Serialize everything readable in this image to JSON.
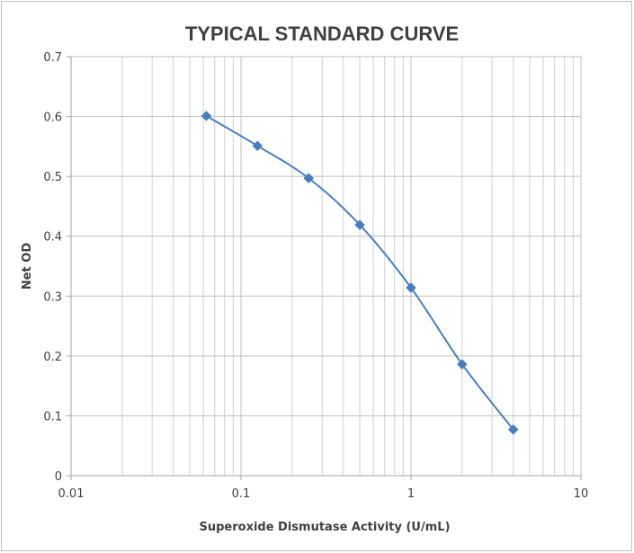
{
  "chart_data": {
    "type": "scatter",
    "title": "TYPICAL STANDARD CURVE",
    "xlabel": "Superoxide Dismutase Activity (U/mL)",
    "ylabel": "Net OD",
    "x_scale": "log",
    "xlim": [
      0.01,
      10
    ],
    "ylim": [
      0,
      0.7
    ],
    "x_ticks": [
      "0.01",
      "0.1",
      "1",
      "10"
    ],
    "y_ticks": [
      "0",
      "0.1",
      "0.2",
      "0.3",
      "0.4",
      "0.5",
      "0.6",
      "0.7"
    ],
    "grid": true,
    "legend": "none",
    "marker": "diamond",
    "lines": "smooth",
    "series_color": "#4a7ebb",
    "series": [
      {
        "x": [
          0.0625,
          0.125,
          0.25,
          0.5,
          1,
          2,
          4
        ],
        "y": [
          0.601,
          0.551,
          0.497,
          0.419,
          0.314,
          0.186,
          0.077
        ]
      }
    ]
  }
}
